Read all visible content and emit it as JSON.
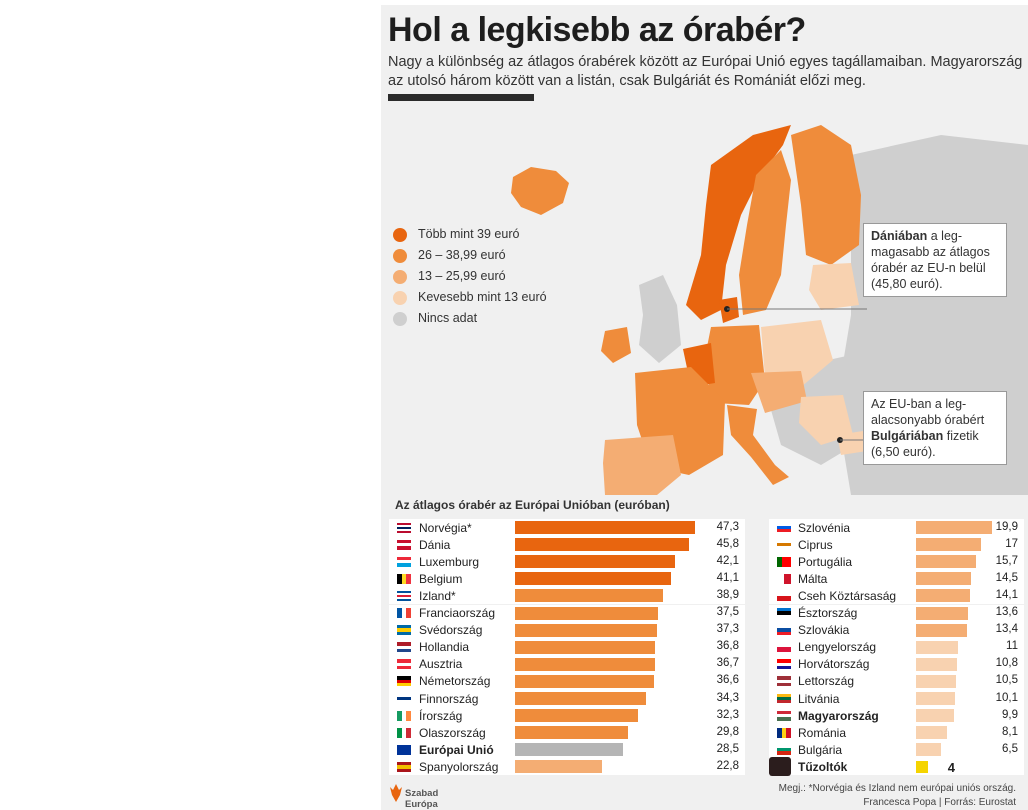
{
  "header": {
    "title": "Hol a legkisebb az órabér?",
    "subtitle": "Nagy a különbség az átlagos órabérek között az Európai Unió egyes tagállamaiban. Magyarország az utolsó három között van a listán, csak Bulgáriát és Romániát előzi meg."
  },
  "legend": [
    {
      "label": "Több mint 39 euró",
      "color": "#e8650f"
    },
    {
      "label": "26 – 38,99 euró",
      "color": "#ef8c3b"
    },
    {
      "label": "13 – 25,99 euró",
      "color": "#f4ad73"
    },
    {
      "label": "Kevesebb mint 13 euró",
      "color": "#f8d2b0"
    },
    {
      "label": "Nincs adat",
      "color": "#cfcfcf"
    }
  ],
  "callouts": {
    "denmark": {
      "bold": "Dániában",
      "text": " a leg-magasabb az átlagos órabér az EU-n belül (45,80 euró)."
    },
    "bulgaria": {
      "pre": "Az EU-ban a leg-alacsonyabb órabért ",
      "bold": "Bulgáriában",
      "text": " fizetik (6,50 euró)."
    }
  },
  "chart_data": {
    "type": "bar",
    "title": "Az átlagos órabér az Európai Unióban (euróban)",
    "unit": "euró",
    "xlim": [
      0,
      47.3
    ],
    "left_column": [
      {
        "country": "Norvégia*",
        "value": 47.3,
        "label": "47,3",
        "flag": "norway-flag",
        "bold": false
      },
      {
        "country": "Dánia",
        "value": 45.8,
        "label": "45,8",
        "flag": "denmark-flag",
        "bold": false
      },
      {
        "country": "Luxemburg",
        "value": 42.1,
        "label": "42,1",
        "flag": "luxembourg-flag",
        "bold": false
      },
      {
        "country": "Belgium",
        "value": 41.1,
        "label": "41,1",
        "flag": "belgium-flag",
        "bold": false
      },
      {
        "country": "Izland*",
        "value": 38.9,
        "label": "38,9",
        "flag": "iceland-flag",
        "bold": false
      },
      {
        "country": "Franciaország",
        "value": 37.5,
        "label": "37,5",
        "flag": "france-flag",
        "bold": false
      },
      {
        "country": "Svédország",
        "value": 37.3,
        "label": "37,3",
        "flag": "sweden-flag",
        "bold": false
      },
      {
        "country": "Hollandia",
        "value": 36.8,
        "label": "36,8",
        "flag": "netherlands-flag",
        "bold": false
      },
      {
        "country": "Ausztria",
        "value": 36.7,
        "label": "36,7",
        "flag": "austria-flag",
        "bold": false
      },
      {
        "country": "Németország",
        "value": 36.6,
        "label": "36,6",
        "flag": "germany-flag",
        "bold": false
      },
      {
        "country": "Finnország",
        "value": 34.3,
        "label": "34,3",
        "flag": "finland-flag",
        "bold": false
      },
      {
        "country": "Írország",
        "value": 32.3,
        "label": "32,3",
        "flag": "ireland-flag",
        "bold": false
      },
      {
        "country": "Olaszország",
        "value": 29.8,
        "label": "29,8",
        "flag": "italy-flag",
        "bold": false
      },
      {
        "country": "Európai Unió",
        "value": 28.5,
        "label": "28,5",
        "flag": "eu-flag",
        "bold": true
      },
      {
        "country": "Spanyolország",
        "value": 22.8,
        "label": "22,8",
        "flag": "spain-flag",
        "bold": false
      }
    ],
    "right_column": [
      {
        "country": "Szlovénia",
        "value": 19.9,
        "label": "19,9",
        "flag": "slovenia-flag",
        "bold": false
      },
      {
        "country": "Ciprus",
        "value": 17,
        "label": "17",
        "flag": "cyprus-flag",
        "bold": false
      },
      {
        "country": "Portugália",
        "value": 15.7,
        "label": "15,7",
        "flag": "portugal-flag",
        "bold": false
      },
      {
        "country": "Málta",
        "value": 14.5,
        "label": "14,5",
        "flag": "malta-flag",
        "bold": false
      },
      {
        "country": "Cseh Köztársaság",
        "value": 14.1,
        "label": "14,1",
        "flag": "czech-flag",
        "bold": false
      },
      {
        "country": "Észtország",
        "value": 13.6,
        "label": "13,6",
        "flag": "estonia-flag",
        "bold": false
      },
      {
        "country": "Szlovákia",
        "value": 13.4,
        "label": "13,4",
        "flag": "slovakia-flag",
        "bold": false
      },
      {
        "country": "Lengyelország",
        "value": 11,
        "label": "11",
        "flag": "poland-flag",
        "bold": false
      },
      {
        "country": "Horvátország",
        "value": 10.8,
        "label": "10,8",
        "flag": "croatia-flag",
        "bold": false
      },
      {
        "country": "Lettország",
        "value": 10.5,
        "label": "10,5",
        "flag": "latvia-flag",
        "bold": false
      },
      {
        "country": "Litvánia",
        "value": 10.1,
        "label": "10,1",
        "flag": "lithuania-flag",
        "bold": false
      },
      {
        "country": "Magyarország",
        "value": 9.9,
        "label": "9,9",
        "flag": "hungary-flag",
        "bold": true
      },
      {
        "country": "Románia",
        "value": 8.1,
        "label": "8,1",
        "flag": "romania-flag",
        "bold": false
      },
      {
        "country": "Bulgária",
        "value": 6.5,
        "label": "6,5",
        "flag": "bulgaria-flag",
        "bold": false
      },
      {
        "country": "Tűzoltók",
        "value": 4,
        "label": "4",
        "flag": "tuzoltok-badge",
        "bold": true
      }
    ]
  },
  "footer": {
    "logo_line1": "Szabad",
    "logo_line2": "Európa",
    "note": "Megj.: *Norvégia és Izland nem európai uniós ország.",
    "credit": "Francesca Popa | Forrás: Eurostat"
  }
}
